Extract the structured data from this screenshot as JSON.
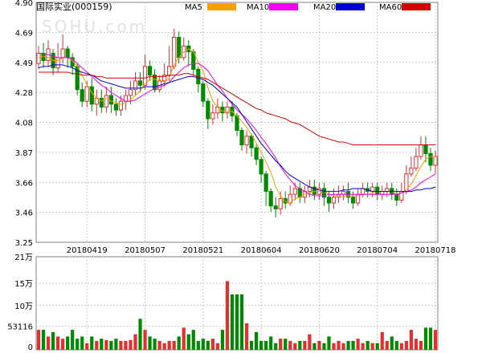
{
  "header": {
    "stock_title": "国际实业(000159)",
    "watermark": "SOHU.com"
  },
  "legend": [
    {
      "label": "MA5",
      "color": "#f5a100"
    },
    {
      "label": "MA10",
      "color": "#f000f0"
    },
    {
      "label": "MA20",
      "color": "#0000d0"
    },
    {
      "label": "MA60",
      "color": "#d40000"
    }
  ],
  "colors": {
    "up": "#e03030",
    "down": "#008a00",
    "grid": "#c8c8c8",
    "axis": "#808080"
  },
  "chart_data": [
    {
      "type": "candlestick",
      "name": "price",
      "y_ticks": [
        "4.90",
        "4.69",
        "4.49",
        "4.28",
        "4.08",
        "3.87",
        "3.66",
        "3.46",
        "3.25"
      ],
      "ylim": [
        3.25,
        4.9
      ],
      "x_tick_labels": [
        {
          "index": 10,
          "label": "20180419"
        },
        {
          "index": 22,
          "label": "20180507"
        },
        {
          "index": 34,
          "label": "20180521"
        },
        {
          "index": 46,
          "label": "20180604"
        },
        {
          "index": 58,
          "label": "20180620"
        },
        {
          "index": 70,
          "label": "20180704"
        },
        {
          "index": 82,
          "label": "20180718"
        }
      ],
      "candles": [
        [
          4.48,
          4.55,
          4.6,
          4.44
        ],
        [
          4.55,
          4.5,
          4.62,
          4.45
        ],
        [
          4.5,
          4.58,
          4.64,
          4.46
        ],
        [
          4.55,
          4.45,
          4.58,
          4.4
        ],
        [
          4.45,
          4.52,
          4.62,
          4.42
        ],
        [
          4.52,
          4.58,
          4.68,
          4.48
        ],
        [
          4.58,
          4.52,
          4.6,
          4.45
        ],
        [
          4.52,
          4.46,
          4.55,
          4.4
        ],
        [
          4.46,
          4.3,
          4.48,
          4.26
        ],
        [
          4.3,
          4.22,
          4.35,
          4.18
        ],
        [
          4.22,
          4.32,
          4.36,
          4.18
        ],
        [
          4.32,
          4.2,
          4.38,
          4.15
        ],
        [
          4.2,
          4.24,
          4.3,
          4.12
        ],
        [
          4.24,
          4.18,
          4.3,
          4.14
        ],
        [
          4.18,
          4.26,
          4.32,
          4.14
        ],
        [
          4.26,
          4.2,
          4.32,
          4.14
        ],
        [
          4.2,
          4.16,
          4.24,
          4.12
        ],
        [
          4.16,
          4.22,
          4.26,
          4.12
        ],
        [
          4.22,
          4.26,
          4.3,
          4.16
        ],
        [
          4.26,
          4.3,
          4.36,
          4.2
        ],
        [
          4.3,
          4.36,
          4.42,
          4.26
        ],
        [
          4.36,
          4.33,
          4.42,
          4.28
        ],
        [
          4.33,
          4.46,
          4.54,
          4.3
        ],
        [
          4.46,
          4.4,
          4.5,
          4.36
        ],
        [
          4.4,
          4.3,
          4.44,
          4.28
        ],
        [
          4.3,
          4.36,
          4.4,
          4.28
        ],
        [
          4.36,
          4.4,
          4.48,
          4.32
        ],
        [
          4.4,
          4.46,
          4.6,
          4.36
        ],
        [
          4.46,
          4.66,
          4.72,
          4.44
        ],
        [
          4.66,
          4.52,
          4.7,
          4.48
        ],
        [
          4.52,
          4.6,
          4.66,
          4.5
        ],
        [
          4.6,
          4.56,
          4.64,
          4.46
        ],
        [
          4.56,
          4.44,
          4.58,
          4.4
        ],
        [
          4.44,
          4.34,
          4.46,
          4.28
        ],
        [
          4.34,
          4.22,
          4.36,
          4.18
        ],
        [
          4.22,
          4.1,
          4.24,
          4.03
        ],
        [
          4.1,
          4.14,
          4.2,
          4.06
        ],
        [
          4.14,
          4.18,
          4.24,
          4.1
        ],
        [
          4.18,
          4.14,
          4.22,
          4.08
        ],
        [
          4.14,
          4.18,
          4.22,
          4.1
        ],
        [
          4.18,
          4.12,
          4.22,
          4.08
        ],
        [
          4.12,
          4.02,
          4.14,
          3.98
        ],
        [
          4.02,
          3.92,
          4.04,
          3.88
        ],
        [
          3.92,
          3.98,
          4.02,
          3.86
        ],
        [
          3.98,
          3.9,
          4.0,
          3.84
        ],
        [
          3.9,
          3.82,
          3.92,
          3.78
        ],
        [
          3.82,
          3.72,
          3.84,
          3.66
        ],
        [
          3.72,
          3.6,
          3.74,
          3.5
        ],
        [
          3.6,
          3.5,
          3.62,
          3.46
        ],
        [
          3.5,
          3.48,
          3.56,
          3.42
        ],
        [
          3.48,
          3.55,
          3.6,
          3.44
        ],
        [
          3.55,
          3.52,
          3.6,
          3.48
        ],
        [
          3.52,
          3.58,
          3.64,
          3.5
        ],
        [
          3.58,
          3.62,
          3.66,
          3.54
        ],
        [
          3.62,
          3.56,
          3.66,
          3.52
        ],
        [
          3.56,
          3.6,
          3.64,
          3.52
        ],
        [
          3.6,
          3.63,
          3.68,
          3.56
        ],
        [
          3.63,
          3.58,
          3.68,
          3.54
        ],
        [
          3.58,
          3.62,
          3.66,
          3.54
        ],
        [
          3.62,
          3.56,
          3.66,
          3.5
        ],
        [
          3.56,
          3.52,
          3.6,
          3.46
        ],
        [
          3.52,
          3.56,
          3.62,
          3.48
        ],
        [
          3.56,
          3.58,
          3.64,
          3.52
        ],
        [
          3.58,
          3.6,
          3.64,
          3.54
        ],
        [
          3.6,
          3.56,
          3.66,
          3.52
        ],
        [
          3.56,
          3.52,
          3.6,
          3.48
        ],
        [
          3.52,
          3.58,
          3.62,
          3.5
        ],
        [
          3.58,
          3.62,
          3.66,
          3.56
        ],
        [
          3.62,
          3.6,
          3.66,
          3.56
        ],
        [
          3.6,
          3.63,
          3.66,
          3.56
        ],
        [
          3.63,
          3.58,
          3.66,
          3.54
        ],
        [
          3.58,
          3.6,
          3.64,
          3.54
        ],
        [
          3.6,
          3.62,
          3.66,
          3.56
        ],
        [
          3.62,
          3.58,
          3.66,
          3.54
        ],
        [
          3.58,
          3.54,
          3.62,
          3.5
        ],
        [
          3.54,
          3.6,
          3.66,
          3.52
        ],
        [
          3.6,
          3.72,
          3.78,
          3.58
        ],
        [
          3.72,
          3.76,
          3.84,
          3.7
        ],
        [
          3.76,
          3.84,
          3.9,
          3.74
        ],
        [
          3.84,
          3.92,
          3.98,
          3.82
        ],
        [
          3.92,
          3.86,
          3.98,
          3.8
        ],
        [
          3.86,
          3.78,
          3.9,
          3.74
        ],
        [
          3.78,
          3.84,
          3.88,
          3.72
        ]
      ],
      "ma5": [
        4.52,
        4.53,
        4.52,
        4.5,
        4.5,
        4.52,
        4.52,
        4.5,
        4.46,
        4.4,
        4.33,
        4.28,
        4.24,
        4.22,
        4.24,
        4.22,
        4.21,
        4.2,
        4.21,
        4.23,
        4.26,
        4.29,
        4.34,
        4.37,
        4.37,
        4.37,
        4.35,
        4.38,
        4.47,
        4.52,
        4.56,
        4.58,
        4.56,
        4.49,
        4.43,
        4.31,
        4.22,
        4.18,
        4.15,
        4.15,
        4.15,
        4.12,
        4.08,
        4.04,
        3.99,
        3.93,
        3.87,
        3.8,
        3.73,
        3.63,
        3.57,
        3.53,
        3.52,
        3.55,
        3.56,
        3.58,
        3.59,
        3.6,
        3.6,
        3.6,
        3.58,
        3.57,
        3.57,
        3.56,
        3.57,
        3.57,
        3.57,
        3.58,
        3.58,
        3.59,
        3.6,
        3.6,
        3.6,
        3.6,
        3.58,
        3.59,
        3.61,
        3.65,
        3.71,
        3.77,
        3.82,
        3.84,
        3.84
      ],
      "ma10": [
        4.55,
        4.55,
        4.54,
        4.53,
        4.52,
        4.52,
        4.52,
        4.51,
        4.48,
        4.45,
        4.42,
        4.39,
        4.36,
        4.33,
        4.31,
        4.28,
        4.26,
        4.24,
        4.22,
        4.22,
        4.23,
        4.25,
        4.27,
        4.29,
        4.31,
        4.32,
        4.33,
        4.35,
        4.39,
        4.42,
        4.45,
        4.47,
        4.48,
        4.48,
        4.46,
        4.43,
        4.38,
        4.33,
        4.29,
        4.24,
        4.2,
        4.16,
        4.13,
        4.1,
        4.06,
        4.02,
        3.97,
        3.93,
        3.88,
        3.83,
        3.77,
        3.72,
        3.68,
        3.64,
        3.62,
        3.6,
        3.58,
        3.57,
        3.57,
        3.57,
        3.58,
        3.58,
        3.58,
        3.58,
        3.58,
        3.58,
        3.58,
        3.58,
        3.58,
        3.58,
        3.58,
        3.58,
        3.58,
        3.58,
        3.58,
        3.59,
        3.6,
        3.61,
        3.63,
        3.66,
        3.68,
        3.7,
        3.72
      ],
      "ma20": [
        4.45,
        4.46,
        4.46,
        4.47,
        4.47,
        4.47,
        4.46,
        4.45,
        4.43,
        4.42,
        4.41,
        4.4,
        4.38,
        4.36,
        4.35,
        4.34,
        4.33,
        4.32,
        4.31,
        4.31,
        4.31,
        4.31,
        4.32,
        4.32,
        4.32,
        4.33,
        4.34,
        4.35,
        4.36,
        4.37,
        4.38,
        4.39,
        4.39,
        4.38,
        4.37,
        4.35,
        4.33,
        4.3,
        4.27,
        4.24,
        4.21,
        4.18,
        4.13,
        4.08,
        4.03,
        3.98,
        3.93,
        3.89,
        3.85,
        3.81,
        3.78,
        3.74,
        3.71,
        3.69,
        3.67,
        3.65,
        3.63,
        3.62,
        3.61,
        3.6,
        3.6,
        3.6,
        3.6,
        3.61,
        3.61,
        3.62,
        3.62,
        3.62,
        3.61,
        3.6,
        3.6,
        3.6,
        3.6,
        3.6,
        3.6,
        3.6,
        3.6,
        3.6,
        3.61,
        3.61,
        3.62,
        3.62,
        3.63
      ],
      "ma60": [
        4.42,
        4.42,
        4.42,
        4.42,
        4.42,
        4.42,
        4.42,
        4.41,
        4.41,
        4.4,
        4.4,
        4.4,
        4.39,
        4.39,
        4.38,
        4.38,
        4.38,
        4.38,
        4.38,
        4.38,
        4.38,
        4.38,
        4.38,
        4.39,
        4.39,
        4.39,
        4.39,
        4.4,
        4.4,
        4.4,
        4.41,
        4.41,
        4.4,
        4.39,
        4.38,
        4.37,
        4.35,
        4.33,
        4.31,
        4.29,
        4.27,
        4.25,
        4.23,
        4.21,
        4.19,
        4.17,
        4.16,
        4.14,
        4.13,
        4.12,
        4.11,
        4.1,
        4.08,
        4.07,
        4.06,
        4.04,
        4.02,
        4.0,
        3.98,
        3.97,
        3.96,
        3.95,
        3.94,
        3.94,
        3.93,
        3.92,
        3.92,
        3.92,
        3.92,
        3.92,
        3.92,
        3.92,
        3.92,
        3.92,
        3.92,
        3.92,
        3.92,
        3.92,
        3.92,
        3.92,
        3.92,
        3.92,
        3.92
      ]
    },
    {
      "type": "bar",
      "name": "volume",
      "y_ticks": [
        "21万",
        "15万",
        "10万",
        "53116",
        "0"
      ],
      "ylim": [
        0,
        210000
      ],
      "values": [
        45000,
        45000,
        30000,
        40000,
        30000,
        25000,
        30000,
        45000,
        25000,
        30000,
        15000,
        30000,
        20000,
        25000,
        22000,
        20000,
        25000,
        20000,
        20000,
        22000,
        35000,
        70000,
        45000,
        30000,
        25000,
        20000,
        15000,
        20000,
        20000,
        30000,
        50000,
        35000,
        45000,
        20000,
        25000,
        20000,
        25000,
        15000,
        45000,
        155000,
        125000,
        125000,
        125000,
        60000,
        20000,
        40000,
        20000,
        20000,
        30000,
        15000,
        25000,
        25000,
        20000,
        15000,
        20000,
        20000,
        35000,
        15000,
        20000,
        15000,
        30000,
        15000,
        20000,
        15000,
        20000,
        20000,
        25000,
        15000,
        20000,
        15000,
        15000,
        40000,
        20000,
        30000,
        20000,
        15000,
        20000,
        45000,
        25000,
        20000,
        50000,
        50000,
        45000
      ]
    }
  ]
}
